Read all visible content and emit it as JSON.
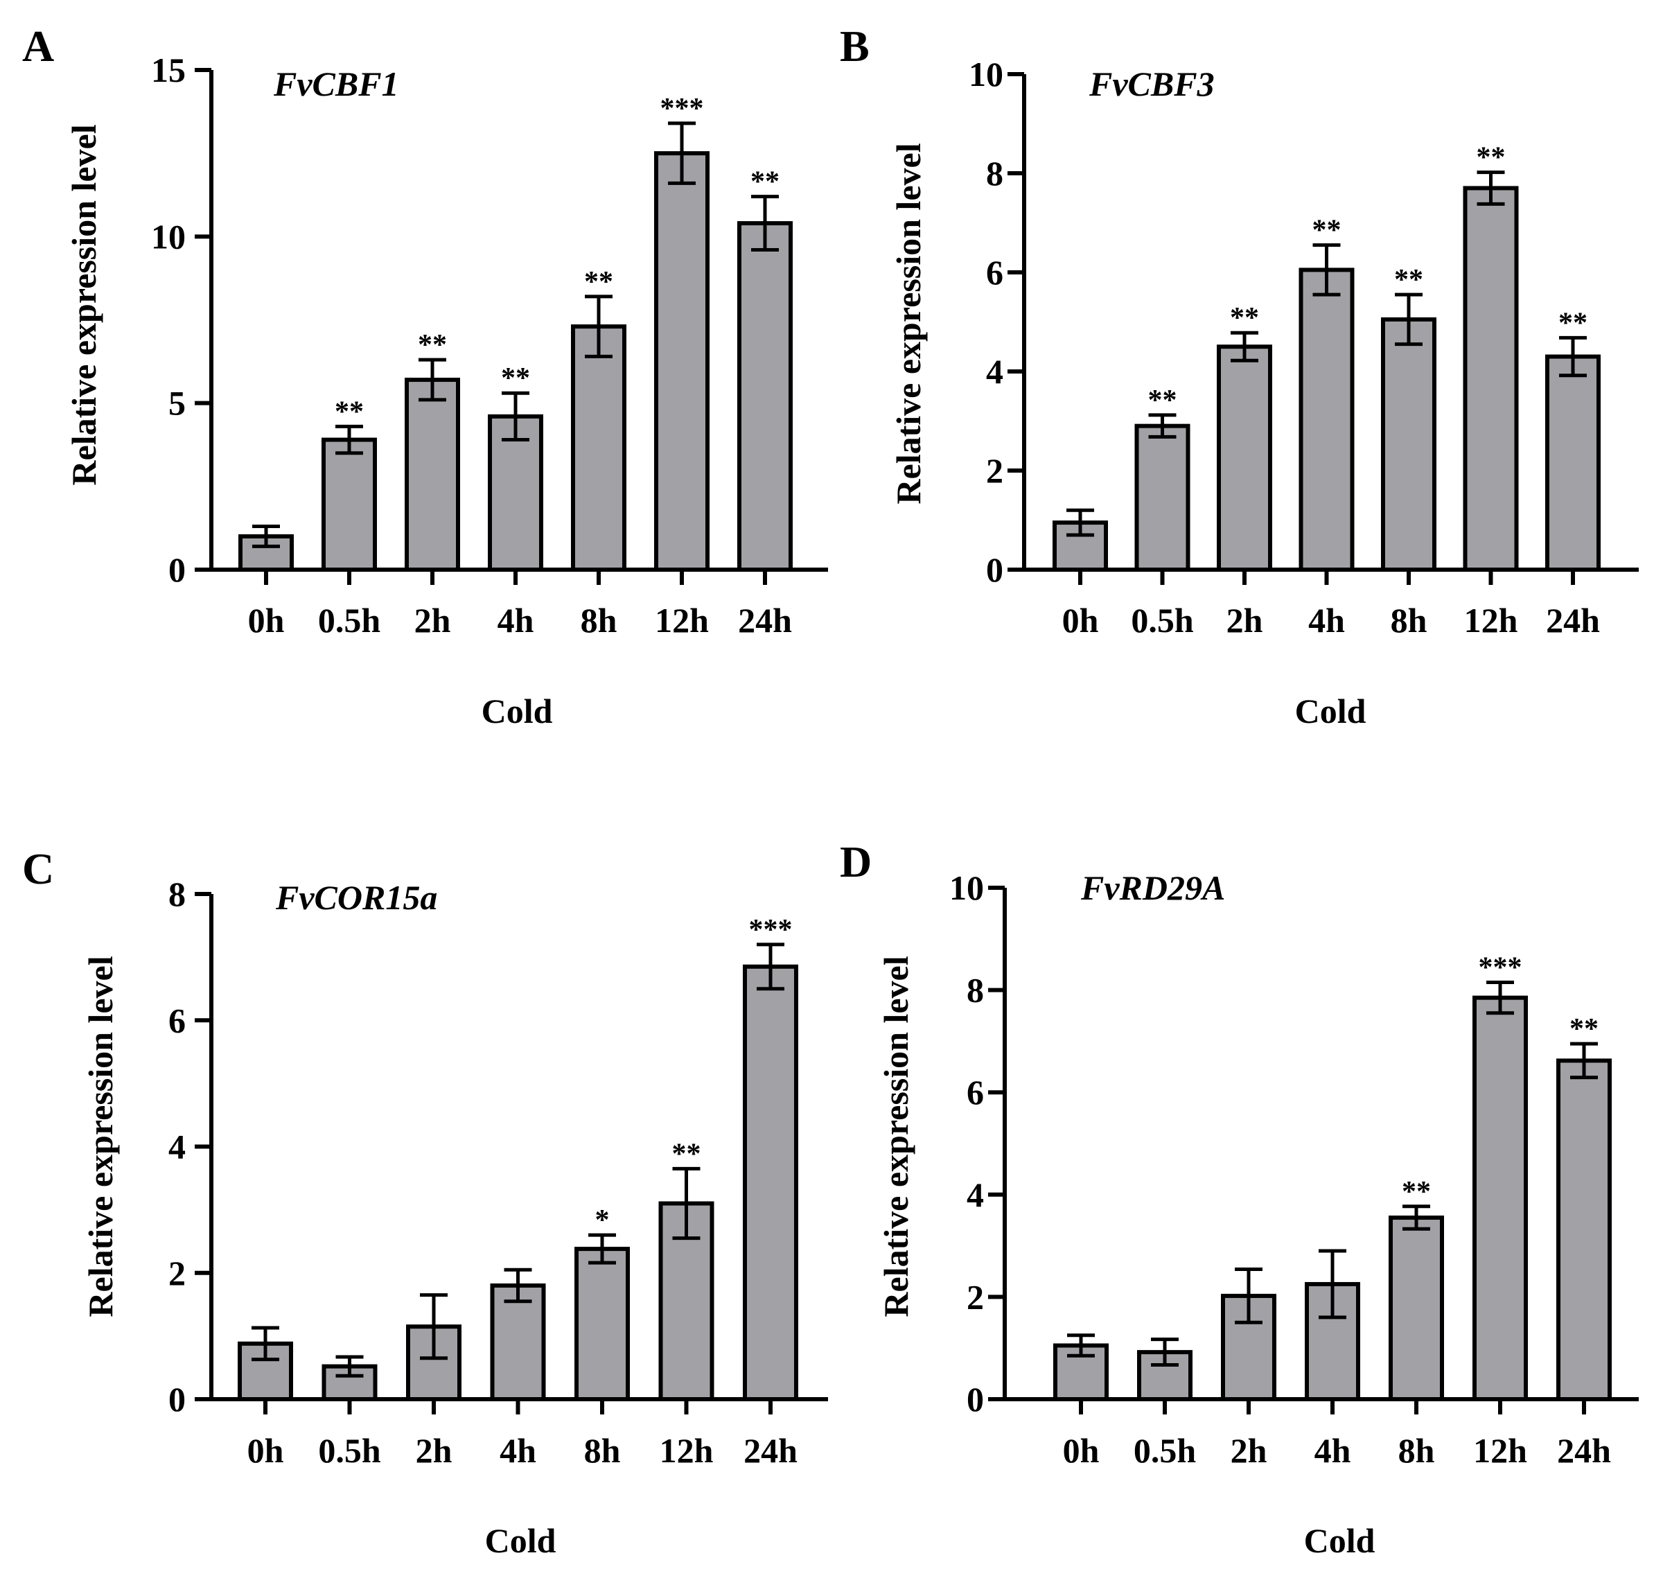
{
  "figure": {
    "panels": [
      {
        "letter": "A",
        "gene": "FvCBF1",
        "ylabel": "Relative expression level",
        "xlabel": "Cold"
      },
      {
        "letter": "B",
        "gene": "FvCBF3",
        "ylabel": "Relative expression level",
        "xlabel": "Cold"
      },
      {
        "letter": "C",
        "gene": "FvCOR15a",
        "ylabel": "Relative expression level",
        "xlabel": "Cold"
      },
      {
        "letter": "D",
        "gene": "FvRD29A",
        "ylabel": "Relative expression level",
        "xlabel": "Cold"
      }
    ]
  },
  "chart_data": [
    {
      "type": "bar",
      "title": "FvCBF1",
      "panel": "A",
      "xlabel": "Cold",
      "ylabel": "Relative expression level",
      "categories": [
        "0h",
        "0.5h",
        "2h",
        "4h",
        "8h",
        "12h",
        "24h"
      ],
      "values": [
        1.0,
        3.9,
        5.7,
        4.6,
        7.3,
        12.5,
        10.4
      ],
      "errors": [
        0.3,
        0.4,
        0.6,
        0.7,
        0.9,
        0.9,
        0.8
      ],
      "significance": [
        "",
        "**",
        "**",
        "**",
        "**",
        "***",
        "**"
      ],
      "ylim": [
        0,
        15
      ],
      "yticks": [
        0,
        5,
        10,
        15
      ],
      "bar_color": "#a2a1a6"
    },
    {
      "type": "bar",
      "title": "FvCBF3",
      "panel": "B",
      "xlabel": "Cold",
      "ylabel": "Relative expression level",
      "categories": [
        "0h",
        "0.5h",
        "2h",
        "4h",
        "8h",
        "12h",
        "24h"
      ],
      "values": [
        0.95,
        2.9,
        4.5,
        6.05,
        5.05,
        7.7,
        4.3
      ],
      "errors": [
        0.25,
        0.22,
        0.28,
        0.5,
        0.5,
        0.32,
        0.38
      ],
      "significance": [
        "",
        "**",
        "**",
        "**",
        "**",
        "**",
        "**"
      ],
      "ylim": [
        0,
        10
      ],
      "yticks": [
        0,
        2,
        4,
        6,
        8,
        10
      ],
      "bar_color": "#a2a1a6"
    },
    {
      "type": "bar",
      "title": "FvCOR15a",
      "panel": "C",
      "xlabel": "Cold",
      "ylabel": "Relative expression level",
      "categories": [
        "0h",
        "0.5h",
        "2h",
        "4h",
        "8h",
        "12h",
        "24h"
      ],
      "values": [
        0.88,
        0.52,
        1.15,
        1.8,
        2.38,
        3.1,
        6.85
      ],
      "errors": [
        0.25,
        0.15,
        0.5,
        0.25,
        0.22,
        0.55,
        0.35
      ],
      "significance": [
        "",
        "",
        "",
        "",
        "*",
        "**",
        "***"
      ],
      "ylim": [
        0,
        8
      ],
      "yticks": [
        0,
        2,
        4,
        6,
        8
      ],
      "bar_color": "#a2a1a6"
    },
    {
      "type": "bar",
      "title": "FvRD29A",
      "panel": "D",
      "xlabel": "Cold",
      "ylabel": "Relative expression level",
      "categories": [
        "0h",
        "0.5h",
        "2h",
        "4h",
        "8h",
        "12h",
        "24h"
      ],
      "values": [
        1.05,
        0.92,
        2.02,
        2.25,
        3.55,
        7.85,
        6.62
      ],
      "errors": [
        0.2,
        0.25,
        0.52,
        0.65,
        0.22,
        0.3,
        0.33
      ],
      "significance": [
        "",
        "",
        "",
        "",
        "**",
        "***",
        "**"
      ],
      "ylim": [
        0,
        10
      ],
      "yticks": [
        0,
        2,
        4,
        6,
        8,
        10
      ],
      "bar_color": "#a2a1a6"
    }
  ]
}
